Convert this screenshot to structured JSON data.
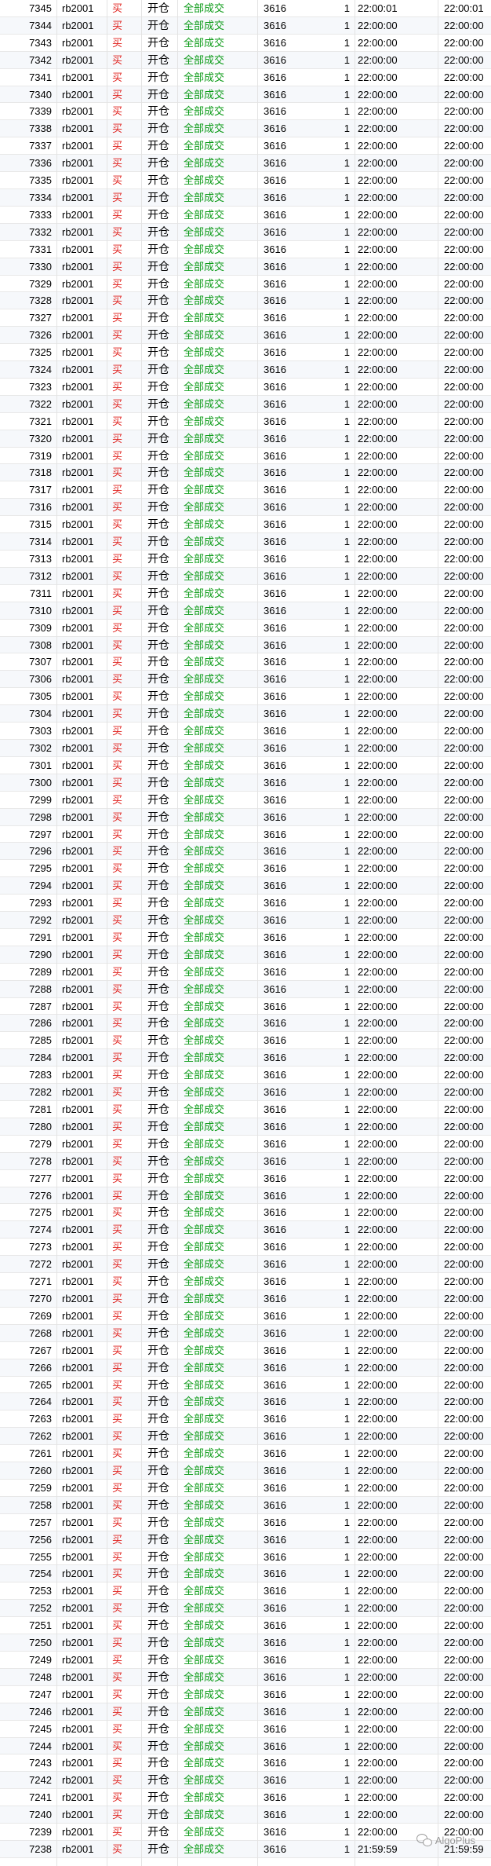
{
  "table": {
    "contract": "rb2001",
    "direction": "买",
    "action": "开仓",
    "status": "全部成交",
    "price": "3616",
    "volume": "1",
    "rows": [
      {
        "id": "7345",
        "t1": "22:00:01",
        "t2": "22:00:01"
      },
      {
        "id": "7344",
        "t1": "22:00:00",
        "t2": "22:00:00"
      },
      {
        "id": "7343",
        "t1": "22:00:00",
        "t2": "22:00:00"
      },
      {
        "id": "7342",
        "t1": "22:00:00",
        "t2": "22:00:00"
      },
      {
        "id": "7341",
        "t1": "22:00:00",
        "t2": "22:00:00"
      },
      {
        "id": "7340",
        "t1": "22:00:00",
        "t2": "22:00:00"
      },
      {
        "id": "7339",
        "t1": "22:00:00",
        "t2": "22:00:00"
      },
      {
        "id": "7338",
        "t1": "22:00:00",
        "t2": "22:00:00"
      },
      {
        "id": "7337",
        "t1": "22:00:00",
        "t2": "22:00:00"
      },
      {
        "id": "7336",
        "t1": "22:00:00",
        "t2": "22:00:00"
      },
      {
        "id": "7335",
        "t1": "22:00:00",
        "t2": "22:00:00"
      },
      {
        "id": "7334",
        "t1": "22:00:00",
        "t2": "22:00:00"
      },
      {
        "id": "7333",
        "t1": "22:00:00",
        "t2": "22:00:00"
      },
      {
        "id": "7332",
        "t1": "22:00:00",
        "t2": "22:00:00"
      },
      {
        "id": "7331",
        "t1": "22:00:00",
        "t2": "22:00:00"
      },
      {
        "id": "7330",
        "t1": "22:00:00",
        "t2": "22:00:00"
      },
      {
        "id": "7329",
        "t1": "22:00:00",
        "t2": "22:00:00"
      },
      {
        "id": "7328",
        "t1": "22:00:00",
        "t2": "22:00:00"
      },
      {
        "id": "7327",
        "t1": "22:00:00",
        "t2": "22:00:00"
      },
      {
        "id": "7326",
        "t1": "22:00:00",
        "t2": "22:00:00"
      },
      {
        "id": "7325",
        "t1": "22:00:00",
        "t2": "22:00:00"
      },
      {
        "id": "7324",
        "t1": "22:00:00",
        "t2": "22:00:00"
      },
      {
        "id": "7323",
        "t1": "22:00:00",
        "t2": "22:00:00"
      },
      {
        "id": "7322",
        "t1": "22:00:00",
        "t2": "22:00:00"
      },
      {
        "id": "7321",
        "t1": "22:00:00",
        "t2": "22:00:00"
      },
      {
        "id": "7320",
        "t1": "22:00:00",
        "t2": "22:00:00"
      },
      {
        "id": "7319",
        "t1": "22:00:00",
        "t2": "22:00:00"
      },
      {
        "id": "7318",
        "t1": "22:00:00",
        "t2": "22:00:00"
      },
      {
        "id": "7317",
        "t1": "22:00:00",
        "t2": "22:00:00"
      },
      {
        "id": "7316",
        "t1": "22:00:00",
        "t2": "22:00:00"
      },
      {
        "id": "7315",
        "t1": "22:00:00",
        "t2": "22:00:00"
      },
      {
        "id": "7314",
        "t1": "22:00:00",
        "t2": "22:00:00"
      },
      {
        "id": "7313",
        "t1": "22:00:00",
        "t2": "22:00:00"
      },
      {
        "id": "7312",
        "t1": "22:00:00",
        "t2": "22:00:00"
      },
      {
        "id": "7311",
        "t1": "22:00:00",
        "t2": "22:00:00"
      },
      {
        "id": "7310",
        "t1": "22:00:00",
        "t2": "22:00:00"
      },
      {
        "id": "7309",
        "t1": "22:00:00",
        "t2": "22:00:00"
      },
      {
        "id": "7308",
        "t1": "22:00:00",
        "t2": "22:00:00"
      },
      {
        "id": "7307",
        "t1": "22:00:00",
        "t2": "22:00:00"
      },
      {
        "id": "7306",
        "t1": "22:00:00",
        "t2": "22:00:00"
      },
      {
        "id": "7305",
        "t1": "22:00:00",
        "t2": "22:00:00"
      },
      {
        "id": "7304",
        "t1": "22:00:00",
        "t2": "22:00:00"
      },
      {
        "id": "7303",
        "t1": "22:00:00",
        "t2": "22:00:00"
      },
      {
        "id": "7302",
        "t1": "22:00:00",
        "t2": "22:00:00"
      },
      {
        "id": "7301",
        "t1": "22:00:00",
        "t2": "22:00:00"
      },
      {
        "id": "7300",
        "t1": "22:00:00",
        "t2": "22:00:00"
      },
      {
        "id": "7299",
        "t1": "22:00:00",
        "t2": "22:00:00"
      },
      {
        "id": "7298",
        "t1": "22:00:00",
        "t2": "22:00:00"
      },
      {
        "id": "7297",
        "t1": "22:00:00",
        "t2": "22:00:00"
      },
      {
        "id": "7296",
        "t1": "22:00:00",
        "t2": "22:00:00"
      },
      {
        "id": "7295",
        "t1": "22:00:00",
        "t2": "22:00:00"
      },
      {
        "id": "7294",
        "t1": "22:00:00",
        "t2": "22:00:00"
      },
      {
        "id": "7293",
        "t1": "22:00:00",
        "t2": "22:00:00"
      },
      {
        "id": "7292",
        "t1": "22:00:00",
        "t2": "22:00:00"
      },
      {
        "id": "7291",
        "t1": "22:00:00",
        "t2": "22:00:00"
      },
      {
        "id": "7290",
        "t1": "22:00:00",
        "t2": "22:00:00"
      },
      {
        "id": "7289",
        "t1": "22:00:00",
        "t2": "22:00:00"
      },
      {
        "id": "7288",
        "t1": "22:00:00",
        "t2": "22:00:00"
      },
      {
        "id": "7287",
        "t1": "22:00:00",
        "t2": "22:00:00"
      },
      {
        "id": "7286",
        "t1": "22:00:00",
        "t2": "22:00:00"
      },
      {
        "id": "7285",
        "t1": "22:00:00",
        "t2": "22:00:00"
      },
      {
        "id": "7284",
        "t1": "22:00:00",
        "t2": "22:00:00"
      },
      {
        "id": "7283",
        "t1": "22:00:00",
        "t2": "22:00:00"
      },
      {
        "id": "7282",
        "t1": "22:00:00",
        "t2": "22:00:00"
      },
      {
        "id": "7281",
        "t1": "22:00:00",
        "t2": "22:00:00"
      },
      {
        "id": "7280",
        "t1": "22:00:00",
        "t2": "22:00:00"
      },
      {
        "id": "7279",
        "t1": "22:00:00",
        "t2": "22:00:00"
      },
      {
        "id": "7278",
        "t1": "22:00:00",
        "t2": "22:00:00"
      },
      {
        "id": "7277",
        "t1": "22:00:00",
        "t2": "22:00:00"
      },
      {
        "id": "7276",
        "t1": "22:00:00",
        "t2": "22:00:00"
      },
      {
        "id": "7275",
        "t1": "22:00:00",
        "t2": "22:00:00"
      },
      {
        "id": "7274",
        "t1": "22:00:00",
        "t2": "22:00:00"
      },
      {
        "id": "7273",
        "t1": "22:00:00",
        "t2": "22:00:00"
      },
      {
        "id": "7272",
        "t1": "22:00:00",
        "t2": "22:00:00"
      },
      {
        "id": "7271",
        "t1": "22:00:00",
        "t2": "22:00:00"
      },
      {
        "id": "7270",
        "t1": "22:00:00",
        "t2": "22:00:00"
      },
      {
        "id": "7269",
        "t1": "22:00:00",
        "t2": "22:00:00"
      },
      {
        "id": "7268",
        "t1": "22:00:00",
        "t2": "22:00:00"
      },
      {
        "id": "7267",
        "t1": "22:00:00",
        "t2": "22:00:00"
      },
      {
        "id": "7266",
        "t1": "22:00:00",
        "t2": "22:00:00"
      },
      {
        "id": "7265",
        "t1": "22:00:00",
        "t2": "22:00:00"
      },
      {
        "id": "7264",
        "t1": "22:00:00",
        "t2": "22:00:00"
      },
      {
        "id": "7263",
        "t1": "22:00:00",
        "t2": "22:00:00"
      },
      {
        "id": "7262",
        "t1": "22:00:00",
        "t2": "22:00:00"
      },
      {
        "id": "7261",
        "t1": "22:00:00",
        "t2": "22:00:00"
      },
      {
        "id": "7260",
        "t1": "22:00:00",
        "t2": "22:00:00"
      },
      {
        "id": "7259",
        "t1": "22:00:00",
        "t2": "22:00:00"
      },
      {
        "id": "7258",
        "t1": "22:00:00",
        "t2": "22:00:00"
      },
      {
        "id": "7257",
        "t1": "22:00:00",
        "t2": "22:00:00"
      },
      {
        "id": "7256",
        "t1": "22:00:00",
        "t2": "22:00:00"
      },
      {
        "id": "7255",
        "t1": "22:00:00",
        "t2": "22:00:00"
      },
      {
        "id": "7254",
        "t1": "22:00:00",
        "t2": "22:00:00"
      },
      {
        "id": "7253",
        "t1": "22:00:00",
        "t2": "22:00:00"
      },
      {
        "id": "7252",
        "t1": "22:00:00",
        "t2": "22:00:00"
      },
      {
        "id": "7251",
        "t1": "22:00:00",
        "t2": "22:00:00"
      },
      {
        "id": "7250",
        "t1": "22:00:00",
        "t2": "22:00:00"
      },
      {
        "id": "7249",
        "t1": "22:00:00",
        "t2": "22:00:00"
      },
      {
        "id": "7248",
        "t1": "22:00:00",
        "t2": "22:00:00"
      },
      {
        "id": "7247",
        "t1": "22:00:00",
        "t2": "22:00:00"
      },
      {
        "id": "7246",
        "t1": "22:00:00",
        "t2": "22:00:00"
      },
      {
        "id": "7245",
        "t1": "22:00:00",
        "t2": "22:00:00"
      },
      {
        "id": "7244",
        "t1": "22:00:00",
        "t2": "22:00:00"
      },
      {
        "id": "7243",
        "t1": "22:00:00",
        "t2": "22:00:00"
      },
      {
        "id": "7242",
        "t1": "22:00:00",
        "t2": "22:00:00"
      },
      {
        "id": "7241",
        "t1": "22:00:00",
        "t2": "22:00:00"
      },
      {
        "id": "7240",
        "t1": "22:00:00",
        "t2": "22:00:00"
      },
      {
        "id": "7239",
        "t1": "22:00:00",
        "t2": "22:00:00"
      },
      {
        "id": "7238",
        "t1": "21:59:59",
        "t2": "21:59:59"
      }
    ]
  },
  "watermark": {
    "icon": "wechat-icon",
    "text": "AlgoPlus"
  },
  "colors": {
    "direction": "#e0201c",
    "status": "#0a9a16",
    "row_alt": "#f6f8fb"
  }
}
